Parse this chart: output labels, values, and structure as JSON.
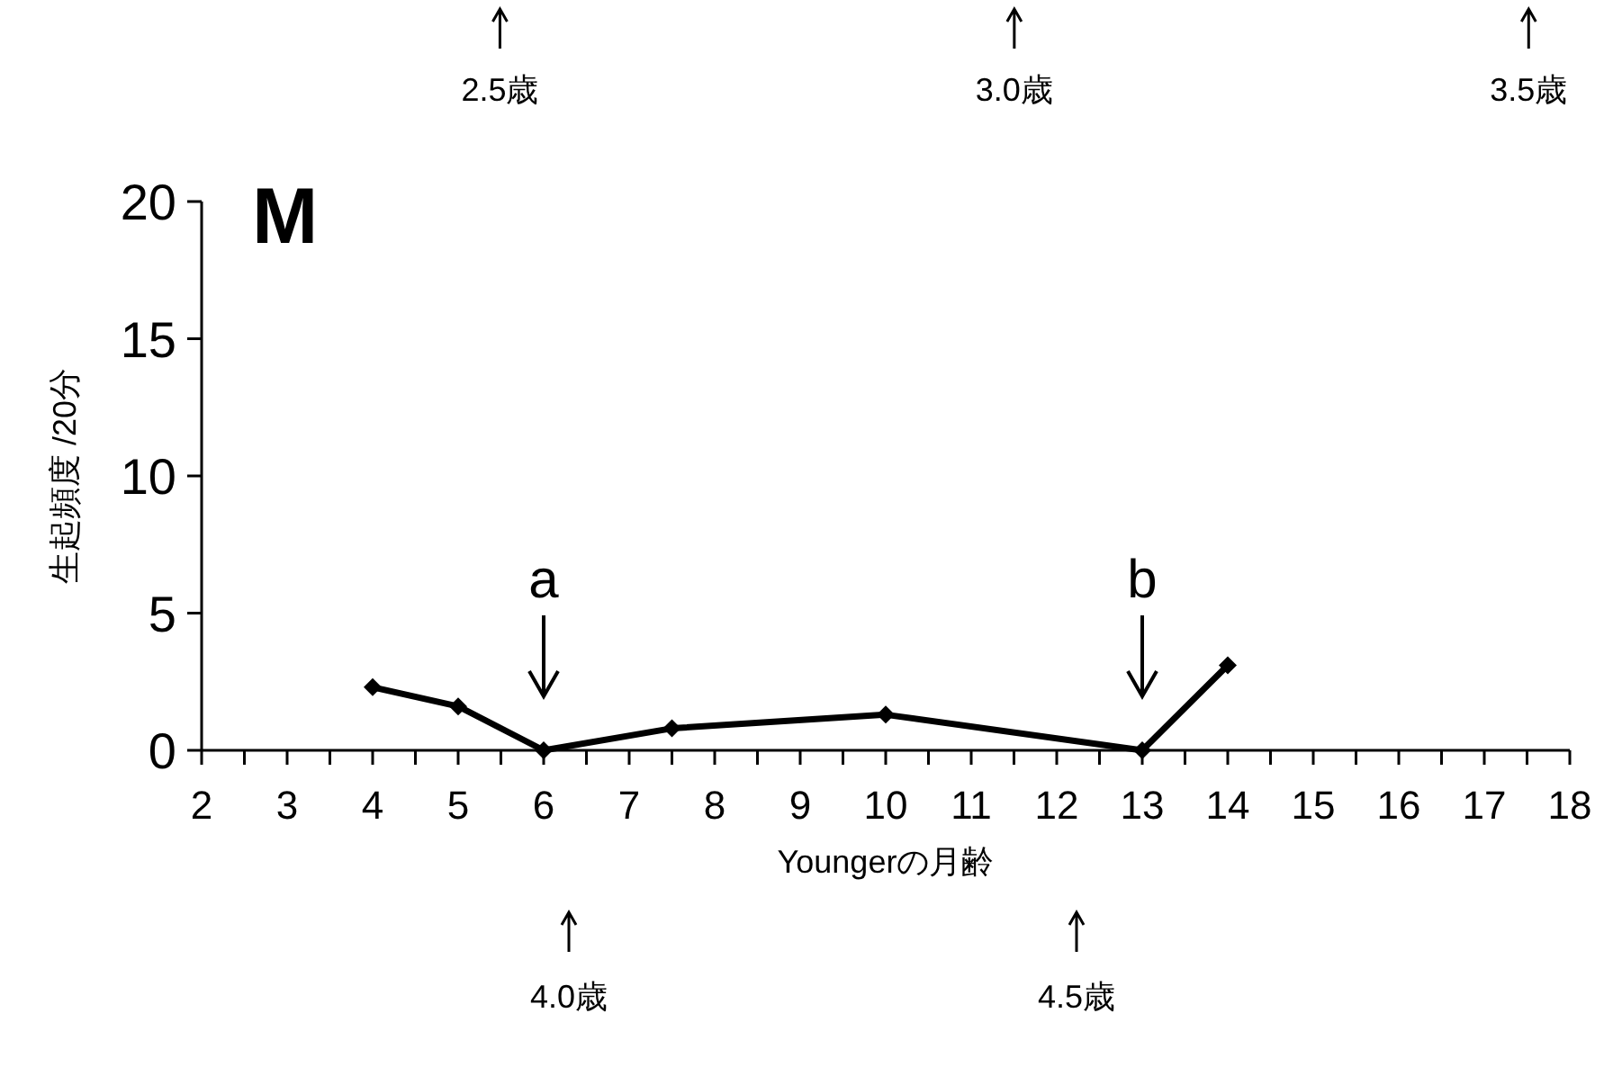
{
  "chart_data": {
    "type": "line",
    "title": "M",
    "xlabel": "Youngerの月齢",
    "ylabel": "生起頻度 /20分",
    "x": [
      4,
      5,
      6,
      7.5,
      10,
      13,
      14
    ],
    "series": [
      {
        "color": "#000000",
        "values": [
          2.3,
          1.6,
          0,
          0.8,
          1.3,
          0,
          3.1
        ]
      }
    ],
    "marker": "diamond",
    "line_style": "solid",
    "xlim": [
      2,
      18
    ],
    "xticks": [
      2,
      {
        "value": 2.5,
        "label": null
      },
      3,
      {
        "value": 3.5,
        "label": null
      },
      4,
      {
        "value": 4.5,
        "label": null
      },
      5,
      {
        "value": 5.5,
        "label": null
      },
      6,
      {
        "value": 6.5,
        "label": null
      },
      7,
      {
        "value": 7.5,
        "label": null
      },
      8,
      {
        "value": 8.5,
        "label": null
      },
      9,
      {
        "value": 9.5,
        "label": null
      },
      10,
      {
        "value": 10.5,
        "label": null
      },
      11,
      {
        "value": 11.5,
        "label": null
      },
      12,
      {
        "value": 12.5,
        "label": null
      },
      13,
      {
        "value": 13.5,
        "label": null
      },
      14,
      {
        "value": 14.5,
        "label": null
      },
      15,
      {
        "value": 15.5,
        "label": null
      },
      16,
      {
        "value": 16.5,
        "label": null
      },
      17,
      {
        "value": 17.5,
        "label": null
      },
      18
    ],
    "ylim": [
      0,
      20
    ],
    "yticks": [
      0,
      5,
      10,
      15,
      20
    ],
    "x2lim": [
      2.21,
      3.54
    ],
    "x2ticks": [
      {
        "value": 2.5,
        "label": "2.5歳"
      },
      {
        "value": 3.0,
        "label": "3.0歳"
      },
      {
        "value": 3.5,
        "label": "3.5歳"
      }
    ],
    "annotations": [
      {
        "text": "a",
        "x": 6,
        "y": 0
      },
      {
        "text": "b",
        "x": 13,
        "y": 0
      },
      "4.0歳",
      "4.5歳"
    ]
  }
}
